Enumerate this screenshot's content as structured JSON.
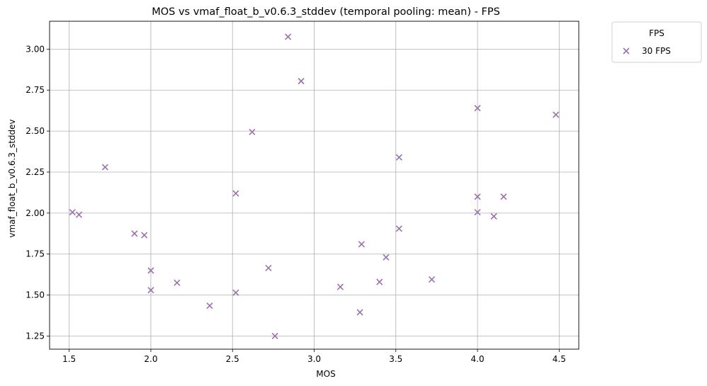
{
  "chart_data": {
    "type": "scatter",
    "title": "MOS vs vmaf_float_b_v0.6.3_stddev (temporal pooling: mean) - FPS",
    "xlabel": "MOS",
    "ylabel": "vmaf_float_b_v0.6.3_stddev",
    "xlim": [
      1.38,
      4.62
    ],
    "ylim": [
      1.17,
      3.17
    ],
    "xticks": [
      1.5,
      2.0,
      2.5,
      3.0,
      3.5,
      4.0,
      4.5
    ],
    "xtick_labels": [
      "1.5",
      "2.0",
      "2.5",
      "3.0",
      "3.5",
      "4.0",
      "4.5"
    ],
    "yticks": [
      1.25,
      1.5,
      1.75,
      2.0,
      2.25,
      2.5,
      2.75,
      3.0
    ],
    "ytick_labels": [
      "1.25",
      "1.50",
      "1.75",
      "2.00",
      "2.25",
      "2.50",
      "2.75",
      "3.00"
    ],
    "grid": true,
    "legend": {
      "title": "FPS",
      "placement": "outside-top-right"
    },
    "series": [
      {
        "name": "30 FPS",
        "marker": "x",
        "color": "#9b72aa",
        "points": [
          [
            1.52,
            2.005
          ],
          [
            1.56,
            1.99
          ],
          [
            1.72,
            2.28
          ],
          [
            1.9,
            1.875
          ],
          [
            1.96,
            1.865
          ],
          [
            2.0,
            1.65
          ],
          [
            2.0,
            1.53
          ],
          [
            2.16,
            1.575
          ],
          [
            2.36,
            1.435
          ],
          [
            2.52,
            2.12
          ],
          [
            2.52,
            1.515
          ],
          [
            2.62,
            2.495
          ],
          [
            2.72,
            1.665
          ],
          [
            2.76,
            1.25
          ],
          [
            2.84,
            3.075
          ],
          [
            2.92,
            2.805
          ],
          [
            3.16,
            1.55
          ],
          [
            3.28,
            1.395
          ],
          [
            3.29,
            1.81
          ],
          [
            3.4,
            1.58
          ],
          [
            3.44,
            1.73
          ],
          [
            3.52,
            2.34
          ],
          [
            3.52,
            1.905
          ],
          [
            3.72,
            1.595
          ],
          [
            4.0,
            2.64
          ],
          [
            4.0,
            2.1
          ],
          [
            4.0,
            2.005
          ],
          [
            4.1,
            1.98
          ],
          [
            4.16,
            2.1
          ],
          [
            4.48,
            2.6
          ]
        ]
      }
    ]
  }
}
